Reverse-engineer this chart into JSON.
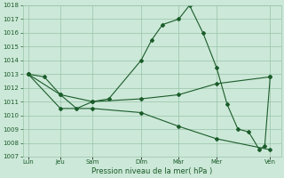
{
  "background_color": "#cce8d8",
  "grid_color": "#99c4aa",
  "line_color": "#1a5c2a",
  "title": "Pression niveau de la mer( hPa )",
  "ylim": [
    1007,
    1018
  ],
  "yticks": [
    1007,
    1008,
    1009,
    1010,
    1011,
    1012,
    1013,
    1014,
    1015,
    1016,
    1017,
    1018
  ],
  "x_labels": [
    "Lun",
    "Jeu",
    "Sam",
    "Dim",
    "Mar",
    "Mer",
    "Ven"
  ],
  "x_positions": [
    0,
    12,
    24,
    42,
    56,
    70,
    90
  ],
  "series1_x": [
    0,
    6,
    12,
    18,
    24,
    30,
    42,
    46,
    50,
    56,
    60,
    65,
    70,
    74,
    78,
    82,
    86,
    88,
    90
  ],
  "series1_y": [
    1013.0,
    1012.8,
    1011.5,
    1010.5,
    1011.0,
    1011.2,
    1014.0,
    1015.5,
    1016.6,
    1017.0,
    1018.0,
    1016.0,
    1013.5,
    1010.8,
    1009.0,
    1008.8,
    1007.5,
    1007.8,
    1012.8
  ],
  "series2_x": [
    0,
    12,
    24,
    42,
    56,
    70,
    90
  ],
  "series2_y": [
    1013.0,
    1011.5,
    1011.0,
    1011.2,
    1011.5,
    1012.3,
    1012.8
  ],
  "series3_x": [
    0,
    12,
    24,
    42,
    56,
    70,
    90
  ],
  "series3_y": [
    1013.0,
    1010.5,
    1010.5,
    1010.2,
    1009.2,
    1008.3,
    1007.5
  ]
}
